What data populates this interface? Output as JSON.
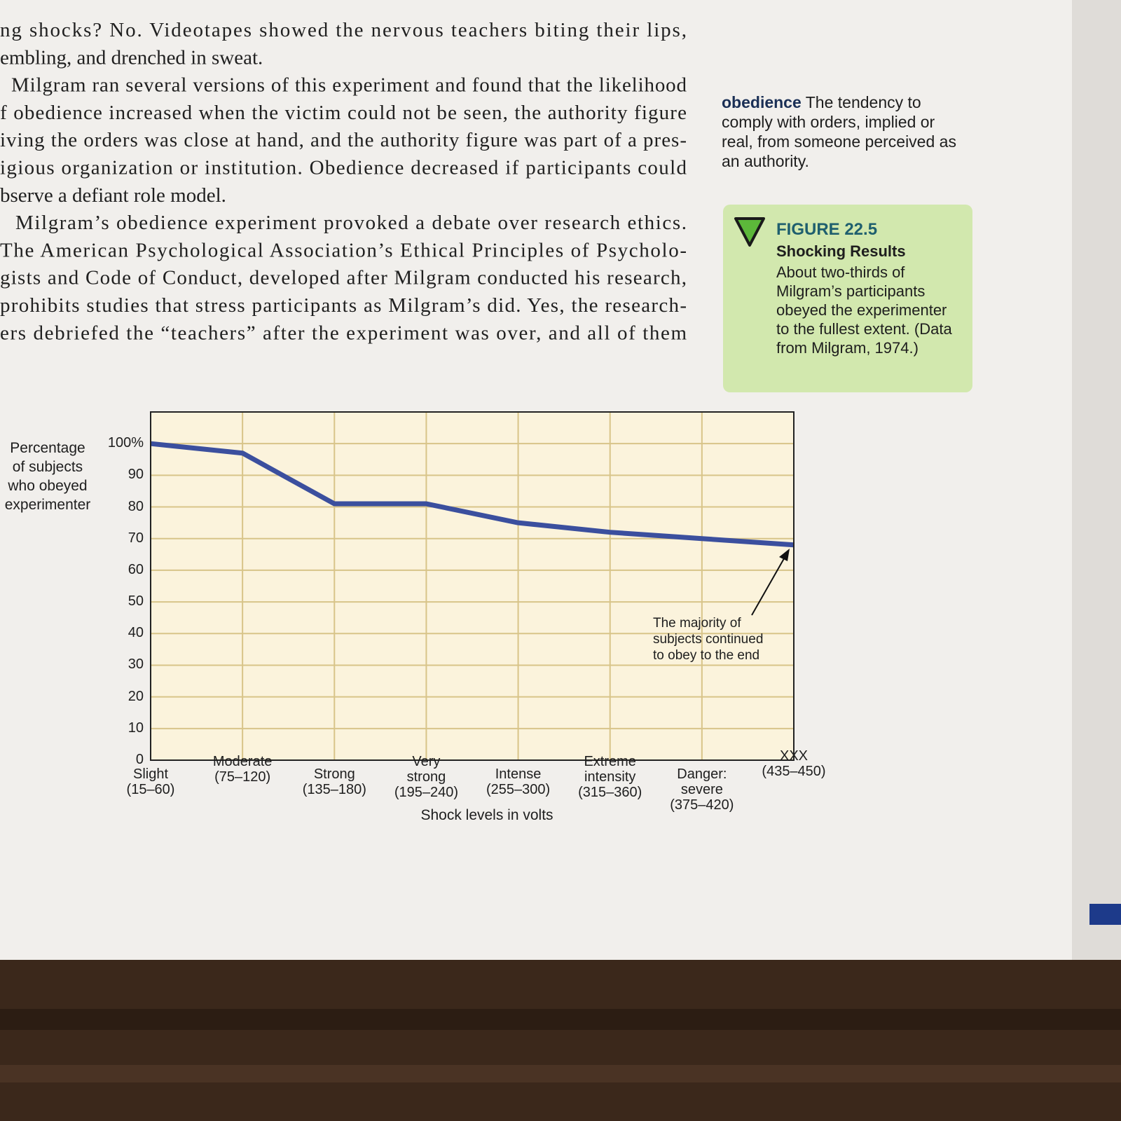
{
  "page": {
    "text_lines": [
      "ng shocks? No. Videotapes showed the nervous teachers biting their lips,",
      "embling, and drenched in sweat.",
      "Milgram ran several versions of this experiment and found that the likelihood",
      "f obedience increased when the victim could not be seen, the authority figure",
      "iving the orders was close at hand, and the authority figure was part of a pres-",
      "igious organization or institution. Obedience decreased if participants could",
      "bserve a defiant role model.",
      "Milgram’s obedience experiment provoked a debate over research ethics.",
      "The American Psychological Association’s Ethical Principles of Psycholo-",
      "gists and Code of Conduct, developed after Milgram conducted his research,",
      "prohibits studies that stress participants as Milgram’s did. Yes, the research-",
      "ers debriefed the “teachers” after the experiment was over, and all of them"
    ],
    "glossary": {
      "term": "obedience",
      "definition": "The tendency to comply with orders, implied or real, from someone perceived as an authority."
    },
    "figure": {
      "number": "FIGURE 22.5",
      "title": "Shocking Results",
      "caption": "About two-thirds of Milgram’s participants obeyed the experimenter to the fullest extent. (Data from Milgram, 1974.)"
    }
  },
  "chart_data": {
    "type": "line",
    "y_label": "Percentage\nof subjects\nwho obeyed\nexperimenter",
    "x_label": "Shock levels in volts",
    "annotation": "The majority of\nsubjects continued\nto obey to the end",
    "categories": [
      "Slight\n(15–60)",
      "Moderate\n(75–120)",
      "Strong\n(135–180)",
      "Very\nstrong\n(195–240)",
      "Intense\n(255–300)",
      "Extreme\nintensity\n(315–360)",
      "Danger:\nsevere\n(375–420)",
      "XXX\n(435–450)"
    ],
    "values": [
      100,
      97,
      81,
      81,
      75,
      72,
      70,
      68
    ],
    "color": "#3b4f9e",
    "ylim": [
      0,
      110
    ],
    "yticks": [
      0,
      10,
      20,
      30,
      40,
      50,
      60,
      70,
      80,
      90,
      {
        "value": 100,
        "label": "100%"
      }
    ],
    "grid": true
  }
}
